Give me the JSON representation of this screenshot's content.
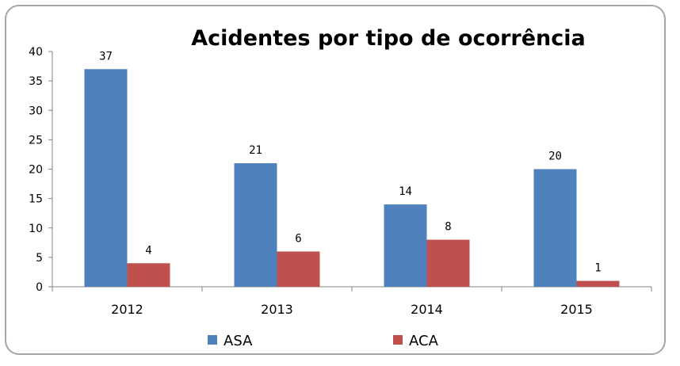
{
  "chart_data": {
    "type": "bar",
    "title": "Acidentes por tipo de ocorrência",
    "categories": [
      "2012",
      "2013",
      "2014",
      "2015"
    ],
    "series": [
      {
        "name": "ASA",
        "values": [
          37,
          21,
          14,
          20
        ],
        "color": "#4f81bd"
      },
      {
        "name": "ACA",
        "values": [
          4,
          6,
          8,
          1
        ],
        "color": "#c0504d"
      }
    ],
    "ylim": [
      0,
      40
    ],
    "yticks": [
      0,
      5,
      10,
      15,
      20,
      25,
      30,
      35,
      40
    ],
    "xlabel": "",
    "ylabel": "",
    "grid": false,
    "legend_position": "bottom"
  }
}
